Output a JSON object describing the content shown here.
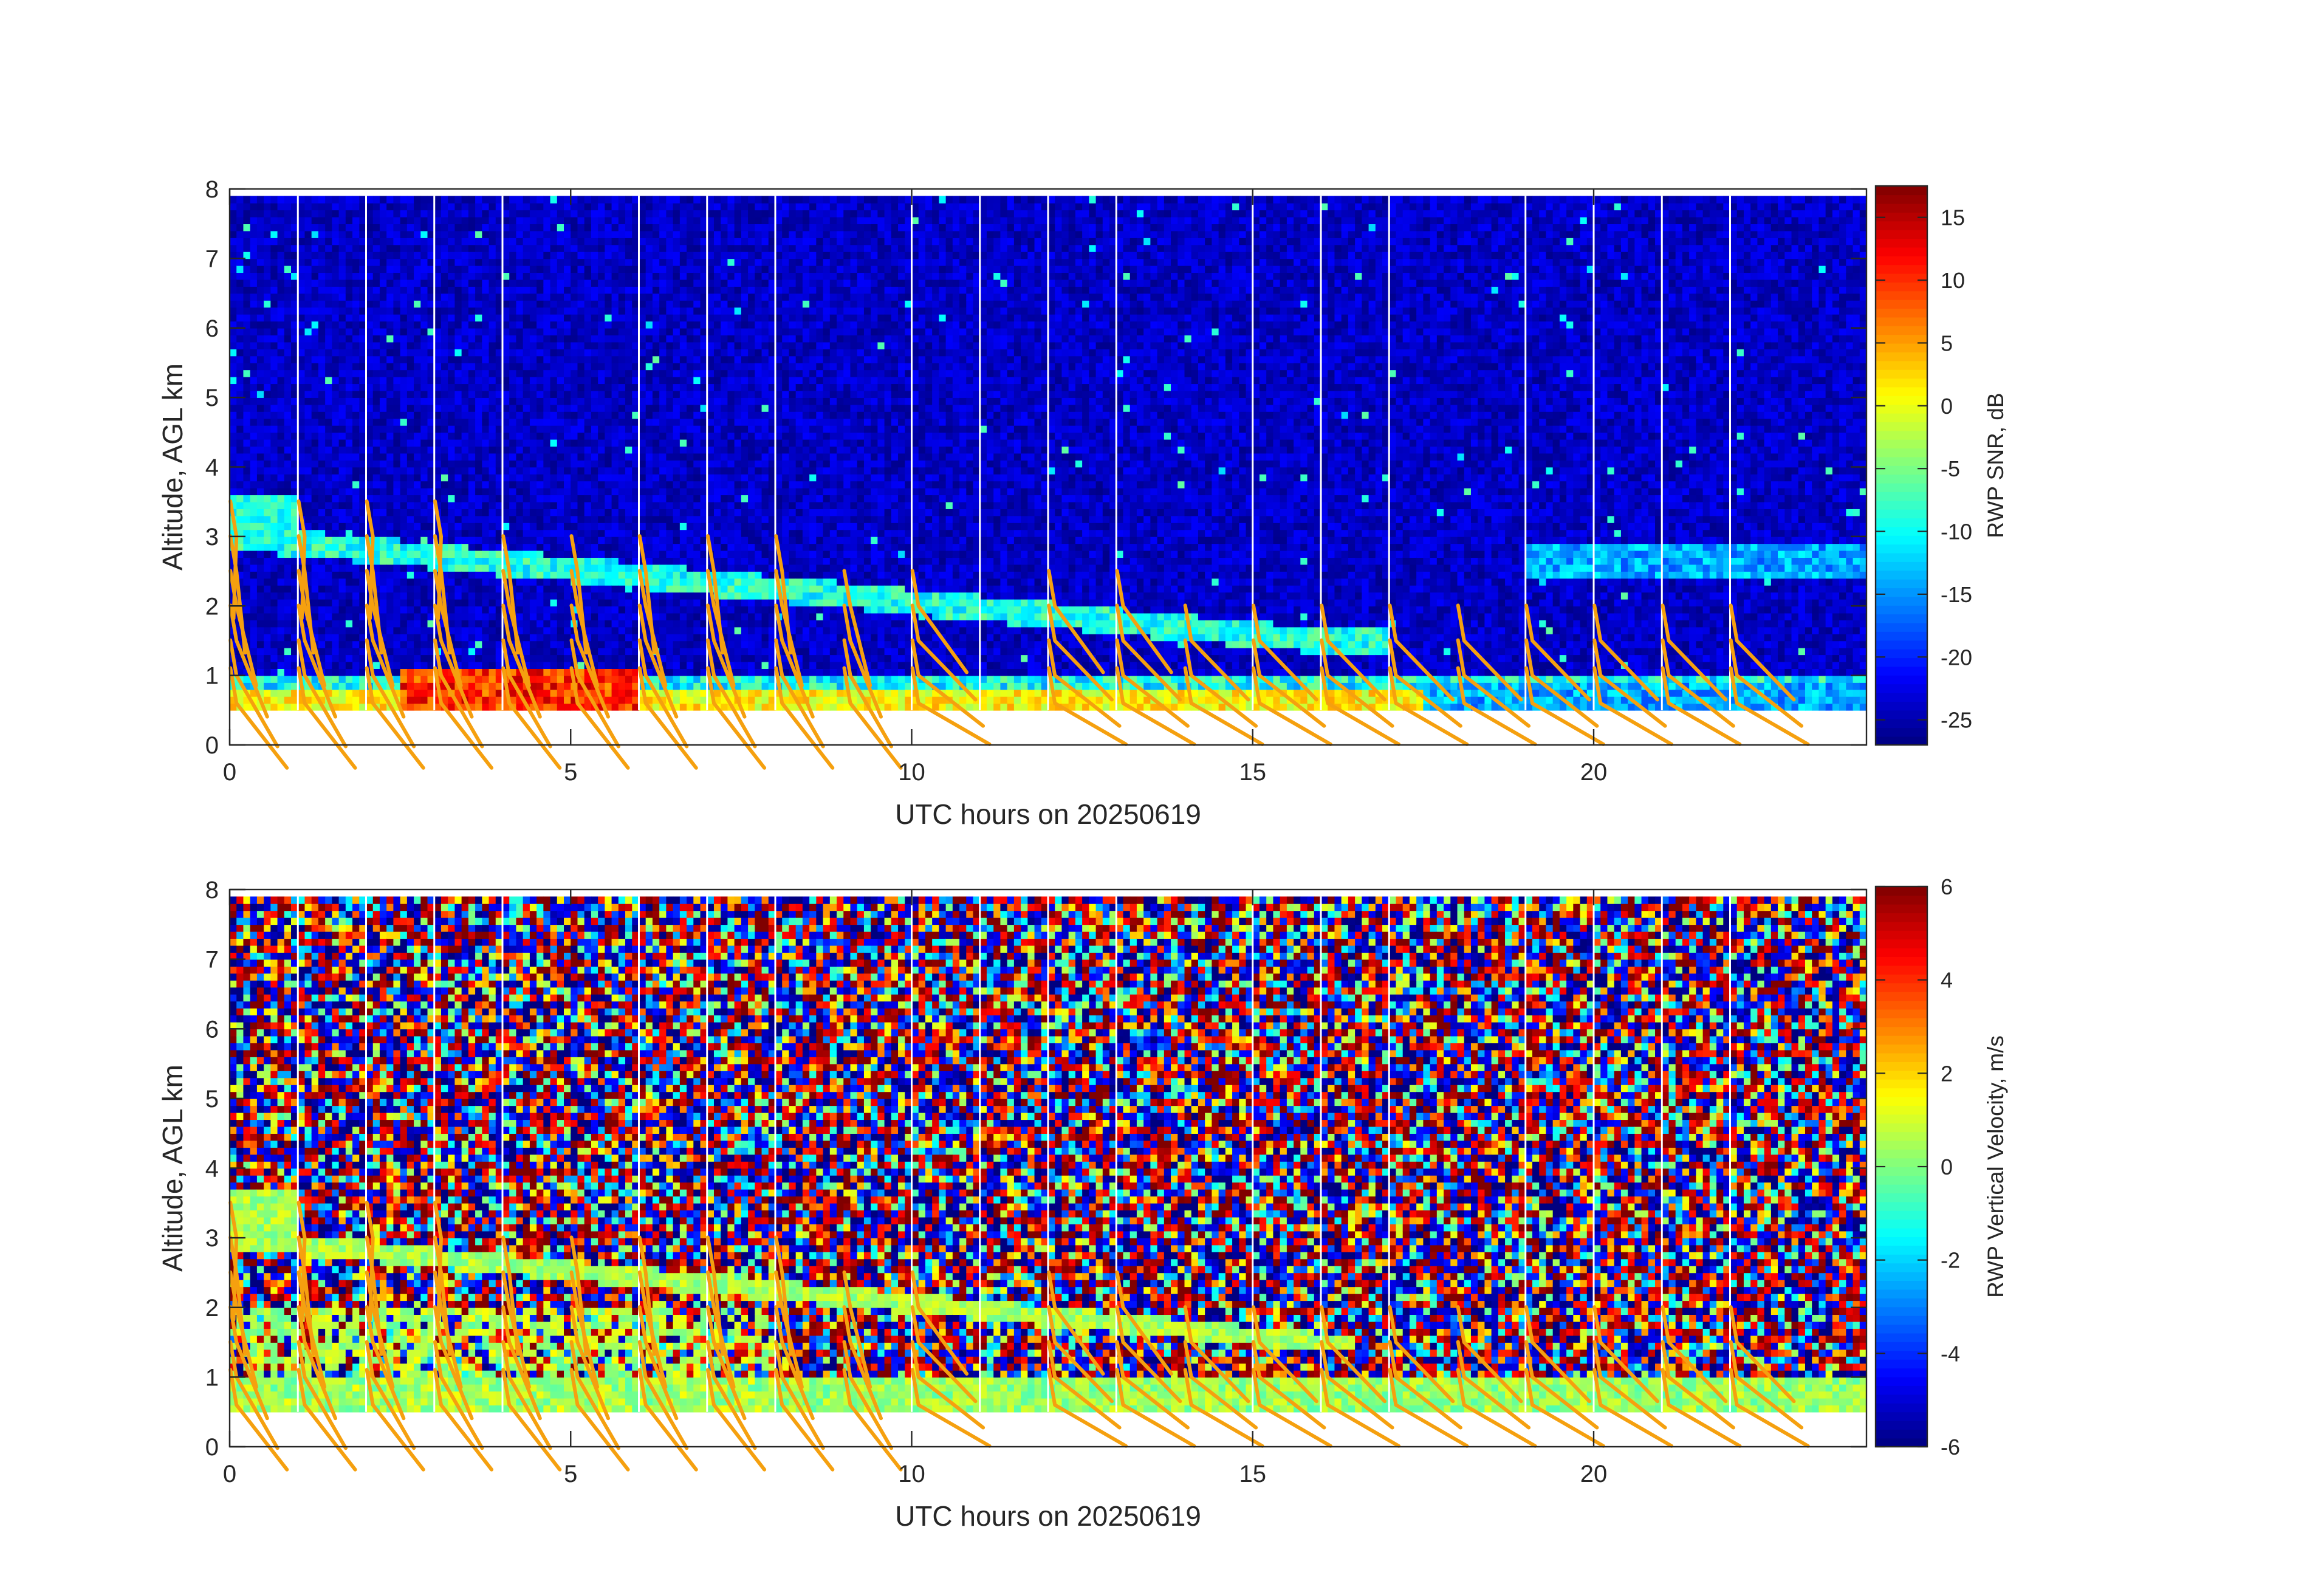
{
  "chart_data": [
    {
      "type": "heatmap",
      "variable": "RWP SNR",
      "colorbar_label": "RWP SNR, dB",
      "colormap": "jet",
      "clim": [
        -27,
        17.5
      ],
      "colorbar_ticks": [
        "15",
        "10",
        "5",
        "0",
        "-5",
        "-10",
        "-15",
        "-20",
        "-25"
      ],
      "colorbar_tick_values": [
        15,
        10,
        5,
        0,
        -5,
        -10,
        -15,
        -20,
        -25
      ],
      "xlabel": "UTC hours on 20250619",
      "ylabel": "Altitude, AGL km",
      "xlim": [
        0,
        24
      ],
      "ylim": [
        0,
        8
      ],
      "data_altitude_range_km": [
        0.5,
        7.9
      ],
      "xticks": [
        "0",
        "5",
        "10",
        "15",
        "20"
      ],
      "xtick_values": [
        0,
        5,
        10,
        15,
        20
      ],
      "yticks": [
        "0",
        "1",
        "2",
        "3",
        "4",
        "5",
        "6",
        "7",
        "8"
      ],
      "ytick_values": [
        0,
        1,
        2,
        3,
        4,
        5,
        6,
        7,
        8
      ],
      "data_gap_hours": [
        1,
        2,
        3,
        4,
        6,
        7,
        8,
        10,
        11,
        12,
        13,
        15,
        16,
        17,
        19,
        20,
        21,
        22
      ],
      "features": [
        {
          "description": "strong return layer near surface",
          "t": [
            2.5,
            6.0
          ],
          "alt_km": [
            0.5,
            1.1
          ],
          "snr_db": 12
        },
        {
          "description": "layer descending",
          "t": [
            0.0,
            16.0
          ],
          "alt_km_start": 3.0,
          "alt_km_end": 1.5,
          "snr_db": -10
        },
        {
          "description": "background noise",
          "alt_km": [
            1.0,
            7.9
          ],
          "snr_db": -24
        }
      ],
      "wind_barbs": {
        "color": "#f5a00f",
        "times": [
          0,
          1,
          2,
          3,
          4,
          5,
          6,
          7,
          8,
          9,
          10,
          12,
          13,
          14,
          15,
          16,
          17,
          18,
          19,
          20,
          21,
          22
        ],
        "altitudes_km": [
          0.6,
          1.0,
          1.5,
          2.0,
          2.5,
          3.0
        ]
      }
    },
    {
      "type": "heatmap",
      "variable": "RWP Vertical Velocity",
      "colorbar_label": "RWP Vertical Velocity, m/s",
      "colormap": "jet",
      "clim": [
        -6,
        6
      ],
      "colorbar_ticks": [
        "6",
        "4",
        "2",
        "0",
        "-2",
        "-4",
        "-6"
      ],
      "colorbar_tick_values": [
        6,
        4,
        2,
        0,
        -2,
        -4,
        -6
      ],
      "xlabel": "UTC hours on 20250619",
      "ylabel": "Altitude, AGL km",
      "xlim": [
        0,
        24
      ],
      "ylim": [
        0,
        8
      ],
      "data_altitude_range_km": [
        0.5,
        7.9
      ],
      "xticks": [
        "0",
        "5",
        "10",
        "15",
        "20"
      ],
      "xtick_values": [
        0,
        5,
        10,
        15,
        20
      ],
      "yticks": [
        "0",
        "1",
        "2",
        "3",
        "4",
        "5",
        "6",
        "7",
        "8"
      ],
      "ytick_values": [
        0,
        1,
        2,
        3,
        4,
        5,
        6,
        7,
        8
      ],
      "data_gap_hours": [
        1,
        2,
        3,
        4,
        6,
        7,
        8,
        10,
        11,
        12,
        13,
        15,
        16,
        17,
        19,
        20,
        21,
        22
      ],
      "features": [
        {
          "description": "near-zero velocity in boundary layer",
          "alt_km": [
            0.5,
            1.0
          ],
          "w_ms": 0.5
        },
        {
          "description": "noisy random velocities aloft",
          "alt_km": [
            1.5,
            7.9
          ],
          "w_ms_range": [
            -6,
            6
          ]
        }
      ],
      "wind_barbs": {
        "color": "#f5a00f",
        "times": [
          0,
          1,
          2,
          3,
          4,
          5,
          6,
          7,
          8,
          9,
          10,
          12,
          13,
          14,
          15,
          16,
          17,
          18,
          19,
          20,
          21,
          22
        ],
        "altitudes_km": [
          0.6,
          1.0,
          1.5,
          2.0,
          2.5,
          3.0
        ]
      }
    }
  ]
}
